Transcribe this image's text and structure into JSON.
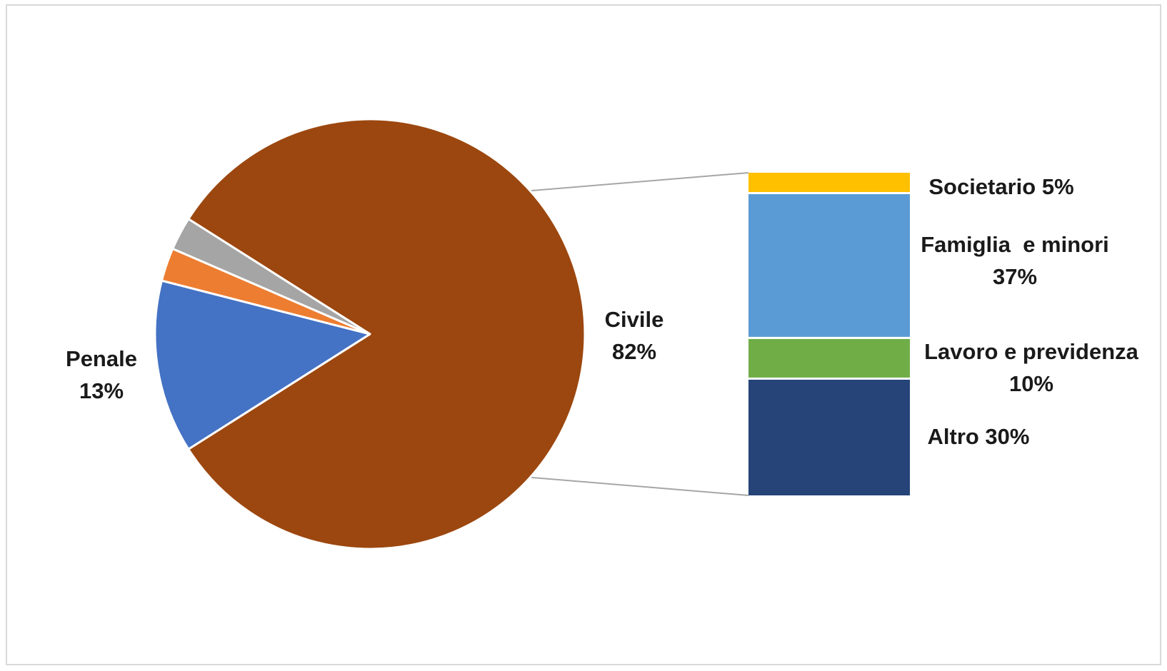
{
  "chart_data": {
    "type": "bar-of-pie",
    "title": "",
    "pie": {
      "slices": [
        {
          "name": "Civile",
          "value": 82,
          "label": "Civile",
          "value_label": "82%",
          "color": "#9c470f"
        },
        {
          "name": "Penale",
          "value": 13,
          "label": "Penale",
          "value_label": "13%",
          "color": "#4472c4"
        },
        {
          "name": "",
          "value": 2.5,
          "color": "#ed7d31"
        },
        {
          "name": "",
          "value": 2.5,
          "color": "#a5a5a5"
        }
      ]
    },
    "bar": {
      "breakdown_of": "Civile",
      "segments": [
        {
          "name": "Societario",
          "value": 5,
          "label_line1": "Societario 5%",
          "label_line2": "",
          "color": "#ffc000"
        },
        {
          "name": "Famiglia e minori",
          "value": 37,
          "label_line1": "Famiglia  e minori",
          "label_line2": "37%",
          "color": "#5b9bd5"
        },
        {
          "name": "Lavoro e previdenza",
          "value": 10,
          "label_line1": "Lavoro e previdenza",
          "label_line2": "10%",
          "color": "#70ad47"
        },
        {
          "name": "Altro",
          "value": 30,
          "label_line1": "Altro 30%",
          "label_line2": "",
          "color": "#264478"
        }
      ]
    },
    "connector_color": "#a6a6a6",
    "legend": "none",
    "grid": false
  }
}
